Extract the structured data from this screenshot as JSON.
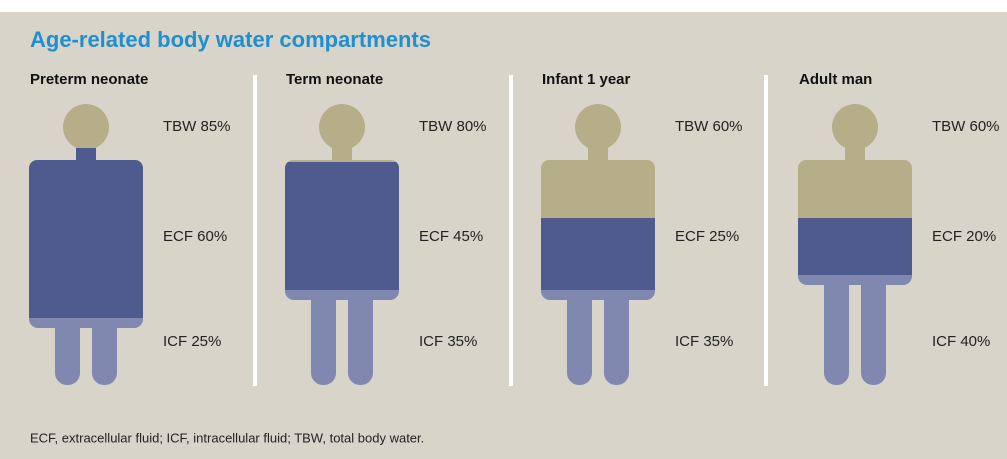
{
  "title": "Age-related body water compartments",
  "panels": [
    {
      "title": "Preterm neonate",
      "tbw": "TBW 85%",
      "ecf": "ECF 60%",
      "icf": "ICF 25%"
    },
    {
      "title": "Term neonate",
      "tbw": "TBW 80%",
      "ecf": "ECF 45%",
      "icf": "ICF 35%"
    },
    {
      "title": "Infant 1 year",
      "tbw": "TBW 60%",
      "ecf": "ECF 25%",
      "icf": "ICF 35%"
    },
    {
      "title": "Adult man",
      "tbw": "TBW 60%",
      "ecf": "ECF 20%",
      "icf": "ICF 40%"
    }
  ],
  "footnote": "ECF, extracellular fluid; ICF, intracellular fluid; TBW, total body water."
}
